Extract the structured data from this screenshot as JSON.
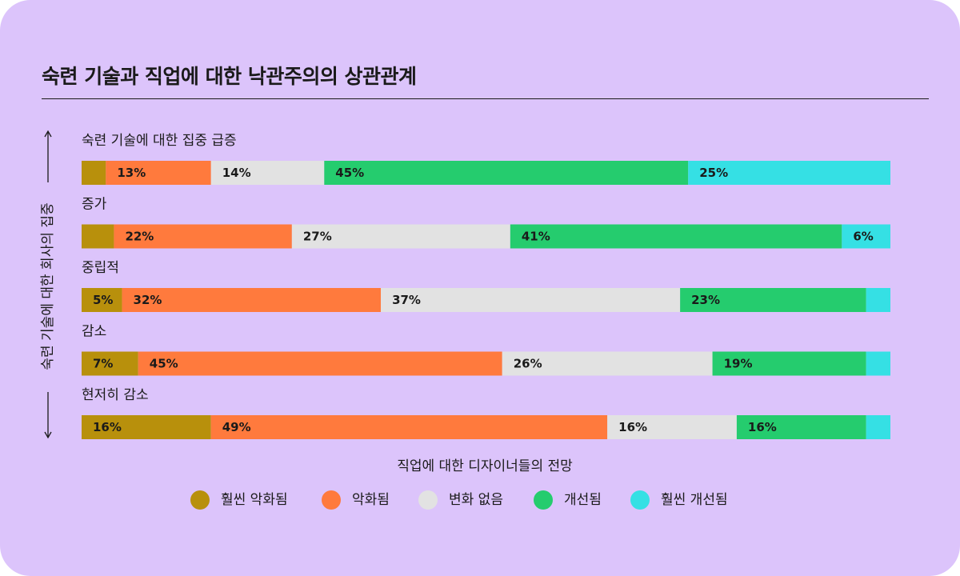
{
  "title": "숙련 기술과 직업에 대한 낙관주의의 상관관계",
  "chart_data": {
    "type": "bar",
    "orientation": "horizontal",
    "stacked": true,
    "normalized": true,
    "xlabel": "직업에 대한 디자이너들의 전망",
    "ylabel": "숙련 기술에 대한 회사의 집중",
    "categories": [
      "숙련 기술에 대한 집중 급증",
      "증가",
      "중립적",
      "감소",
      "현저히 감소"
    ],
    "series": [
      {
        "name": "훨씬 악화됨",
        "color": "#b8900c",
        "values": [
          3,
          4,
          5,
          7,
          16
        ],
        "labels": [
          "",
          "",
          "5%",
          "7%",
          "16%"
        ]
      },
      {
        "name": "악화됨",
        "color": "#ff7a3d",
        "values": [
          13,
          22,
          32,
          45,
          49
        ],
        "labels": [
          "13%",
          "22%",
          "32%",
          "45%",
          "49%"
        ]
      },
      {
        "name": "변화 없음",
        "color": "#e2e2e2",
        "values": [
          14,
          27,
          37,
          26,
          16
        ],
        "labels": [
          "14%",
          "27%",
          "37%",
          "26%",
          "16%"
        ]
      },
      {
        "name": "개선됨",
        "color": "#25cc6e",
        "values": [
          45,
          41,
          23,
          19,
          16
        ],
        "labels": [
          "45%",
          "41%",
          "23%",
          "19%",
          "16%"
        ]
      },
      {
        "name": "훨씬 개선됨",
        "color": "#35e0e4",
        "values": [
          25,
          6,
          3,
          3,
          3
        ],
        "labels": [
          "25%",
          "6%",
          "",
          "",
          ""
        ]
      }
    ],
    "xlim": [
      0,
      100
    ],
    "legend_position": "bottom"
  }
}
